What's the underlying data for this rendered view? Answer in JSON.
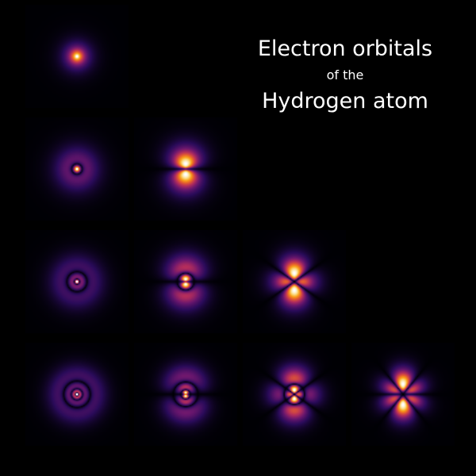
{
  "title": {
    "line1": "Electron orbitals",
    "line2": "of the",
    "line3": "Hydrogen atom"
  },
  "orbitals": [
    {
      "id": "1s",
      "n": 1,
      "l": 0
    },
    {
      "id": "2s",
      "n": 2,
      "l": 0
    },
    {
      "id": "2p",
      "n": 2,
      "l": 1
    },
    {
      "id": "3s",
      "n": 3,
      "l": 0
    },
    {
      "id": "3p",
      "n": 3,
      "l": 1
    },
    {
      "id": "3d",
      "n": 3,
      "l": 2
    },
    {
      "id": "4s",
      "n": 4,
      "l": 0
    },
    {
      "id": "4p",
      "n": 4,
      "l": 1
    },
    {
      "id": "4d",
      "n": 4,
      "l": 2
    },
    {
      "id": "4f",
      "n": 4,
      "l": 3
    }
  ],
  "colors": {
    "background": "#000000",
    "panel": "#0b0b0f",
    "text": "#ffffff",
    "colormap": [
      "#000004",
      "#2a0b5a",
      "#6a176e",
      "#b32d5d",
      "#e55c30",
      "#f9a017",
      "#fbdc83",
      "#ffffff"
    ]
  }
}
